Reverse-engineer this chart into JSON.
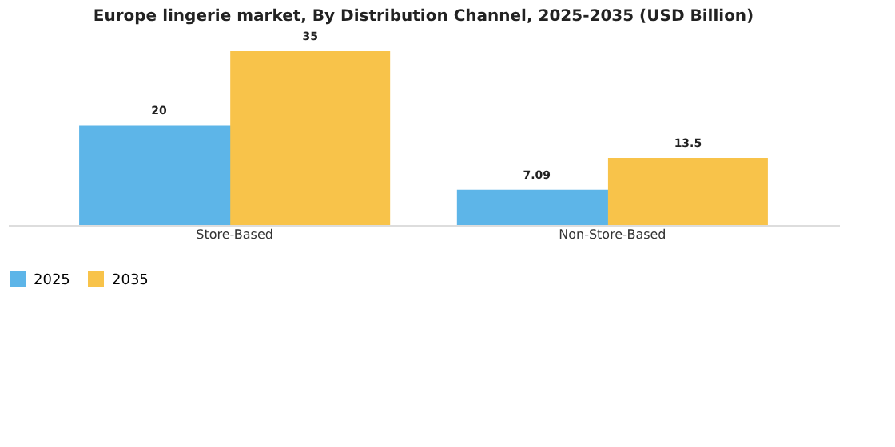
{
  "chart_data": {
    "type": "bar",
    "title": "Europe lingerie market, By Distribution Channel, 2025-2035 (USD Billion)",
    "categories": [
      "Store-Based",
      "Non-Store-Based"
    ],
    "series": [
      {
        "name": "2025",
        "color": "#5db5e8",
        "values": [
          20,
          7.09
        ]
      },
      {
        "name": "2035",
        "color": "#f8c34a",
        "values": [
          35,
          13.5
        ]
      }
    ],
    "data_labels": true,
    "grid": false,
    "legend": "bottom"
  }
}
